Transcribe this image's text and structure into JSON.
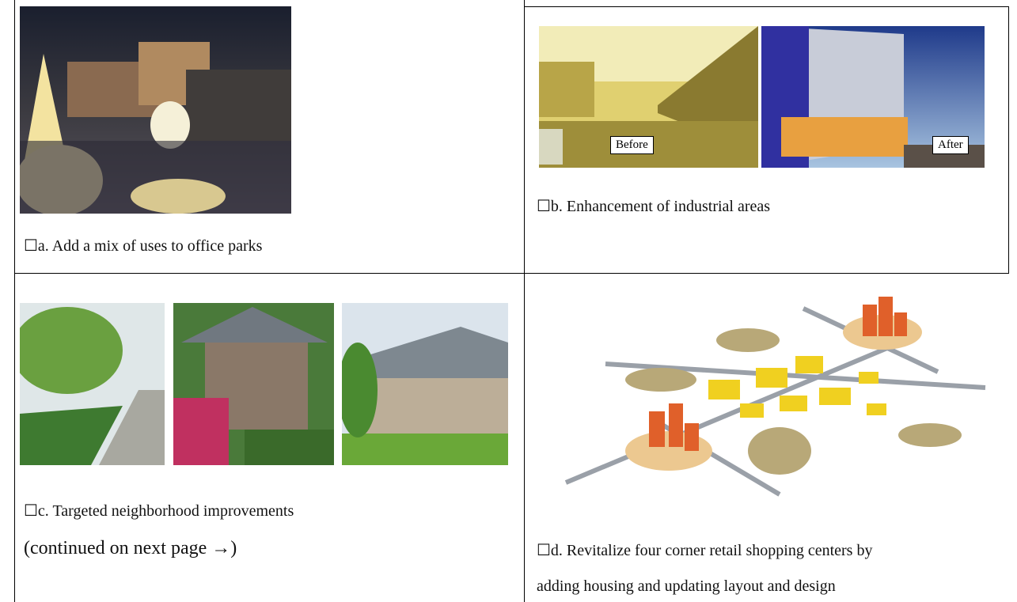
{
  "table": {
    "cells": [
      {
        "caption": "☐a. Add a mix of uses to office parks"
      },
      {
        "caption": "☐b. Enhancement of industrial areas",
        "before_label": "Before",
        "after_label": "After"
      },
      {
        "caption": "☐c. Targeted neighborhood improvements",
        "note": "(continued on next page →)"
      },
      {
        "caption_lines": [
          "☐d. Revitalize four corner retail shopping centers by",
          "adding housing and updating layout and design"
        ]
      }
    ]
  }
}
